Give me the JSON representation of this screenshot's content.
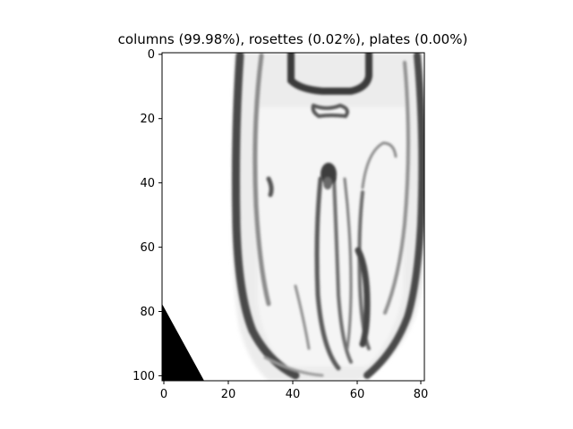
{
  "figure": {
    "title": "columns (99.98%), rosettes (0.02%), plates (0.00%)"
  },
  "image": {
    "description_icon": "grayscale-crystal-image",
    "colors": {
      "background": "#ffffff",
      "dark": "#3c3c3c",
      "mid": "#8a8a8a",
      "light": "#d9d9d9",
      "corner": "#000000"
    }
  },
  "axes": {
    "x_ticks": [
      "0",
      "20",
      "40",
      "60",
      "80"
    ],
    "y_ticks": [
      "0",
      "20",
      "40",
      "60",
      "80",
      "100"
    ],
    "x_range": [
      0,
      81
    ],
    "y_range": [
      0,
      102
    ]
  }
}
